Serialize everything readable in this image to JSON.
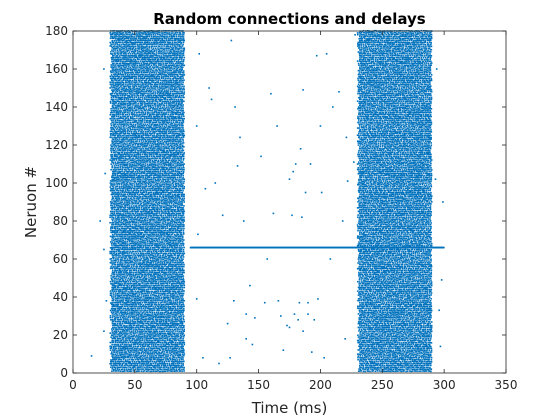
{
  "chart_data": {
    "type": "scatter",
    "title": "Random connections and delays",
    "xlabel": "Time (ms)",
    "ylabel": "Neruon #",
    "xlim": [
      0,
      350
    ],
    "ylim": [
      0,
      180
    ],
    "xticks": [
      0,
      50,
      100,
      150,
      200,
      250,
      300,
      350
    ],
    "yticks": [
      0,
      20,
      40,
      60,
      80,
      100,
      120,
      140,
      160,
      180
    ],
    "grid": false,
    "marker_color": "#0072BD",
    "raster_bands": [
      {
        "t_start": 30,
        "t_end": 90
      },
      {
        "t_start": 230,
        "t_end": 290
      }
    ],
    "sustained_neuron": {
      "neuron": 66,
      "t_start": 95,
      "t_end": 300
    },
    "quiet_active_neurons": [
      4,
      12,
      18,
      25,
      28,
      30,
      33,
      36,
      38,
      40,
      85,
      92,
      102,
      105,
      110,
      118,
      125,
      128,
      140,
      158,
      165,
      170
    ],
    "sparse_points": [
      [
        15,
        9
      ],
      [
        22,
        80
      ],
      [
        25,
        22
      ],
      [
        25,
        65
      ],
      [
        26,
        105
      ],
      [
        25,
        160
      ],
      [
        27,
        38
      ],
      [
        100,
        39
      ],
      [
        101,
        73
      ],
      [
        100,
        130
      ],
      [
        102,
        168
      ],
      [
        105,
        8
      ],
      [
        107,
        97
      ],
      [
        110,
        150
      ],
      [
        112,
        144
      ],
      [
        115,
        100
      ],
      [
        118,
        5
      ],
      [
        121,
        83
      ],
      [
        125,
        26
      ],
      [
        127,
        8
      ],
      [
        130,
        38
      ],
      [
        128,
        175
      ],
      [
        131,
        140
      ],
      [
        133,
        109
      ],
      [
        135,
        124
      ],
      [
        138,
        80
      ],
      [
        140,
        18
      ],
      [
        140,
        31
      ],
      [
        143,
        46
      ],
      [
        145,
        15
      ],
      [
        147,
        29
      ],
      [
        152,
        114
      ],
      [
        155,
        37
      ],
      [
        157,
        60
      ],
      [
        160,
        147
      ],
      [
        162,
        84
      ],
      [
        165,
        130
      ],
      [
        166,
        38
      ],
      [
        168,
        30
      ],
      [
        170,
        12
      ],
      [
        173,
        25
      ],
      [
        175,
        24
      ],
      [
        175,
        102
      ],
      [
        177,
        83
      ],
      [
        178,
        106
      ],
      [
        179,
        31
      ],
      [
        180,
        110
      ],
      [
        182,
        28
      ],
      [
        183,
        37
      ],
      [
        184,
        118
      ],
      [
        185,
        82
      ],
      [
        186,
        149
      ],
      [
        186,
        22
      ],
      [
        188,
        95
      ],
      [
        190,
        37
      ],
      [
        190,
        31
      ],
      [
        192,
        110
      ],
      [
        193,
        11
      ],
      [
        195,
        28
      ],
      [
        197,
        167
      ],
      [
        198,
        39
      ],
      [
        200,
        130
      ],
      [
        201,
        95
      ],
      [
        203,
        8
      ],
      [
        205,
        168
      ],
      [
        208,
        60
      ],
      [
        210,
        140
      ],
      [
        215,
        148
      ],
      [
        218,
        80
      ],
      [
        220,
        18
      ],
      [
        221,
        124
      ],
      [
        222,
        101
      ],
      [
        227,
        111
      ],
      [
        228,
        178
      ],
      [
        293,
        102
      ],
      [
        294,
        160
      ],
      [
        296,
        33
      ],
      [
        297,
        14
      ],
      [
        298,
        49
      ],
      [
        299,
        90
      ]
    ]
  }
}
